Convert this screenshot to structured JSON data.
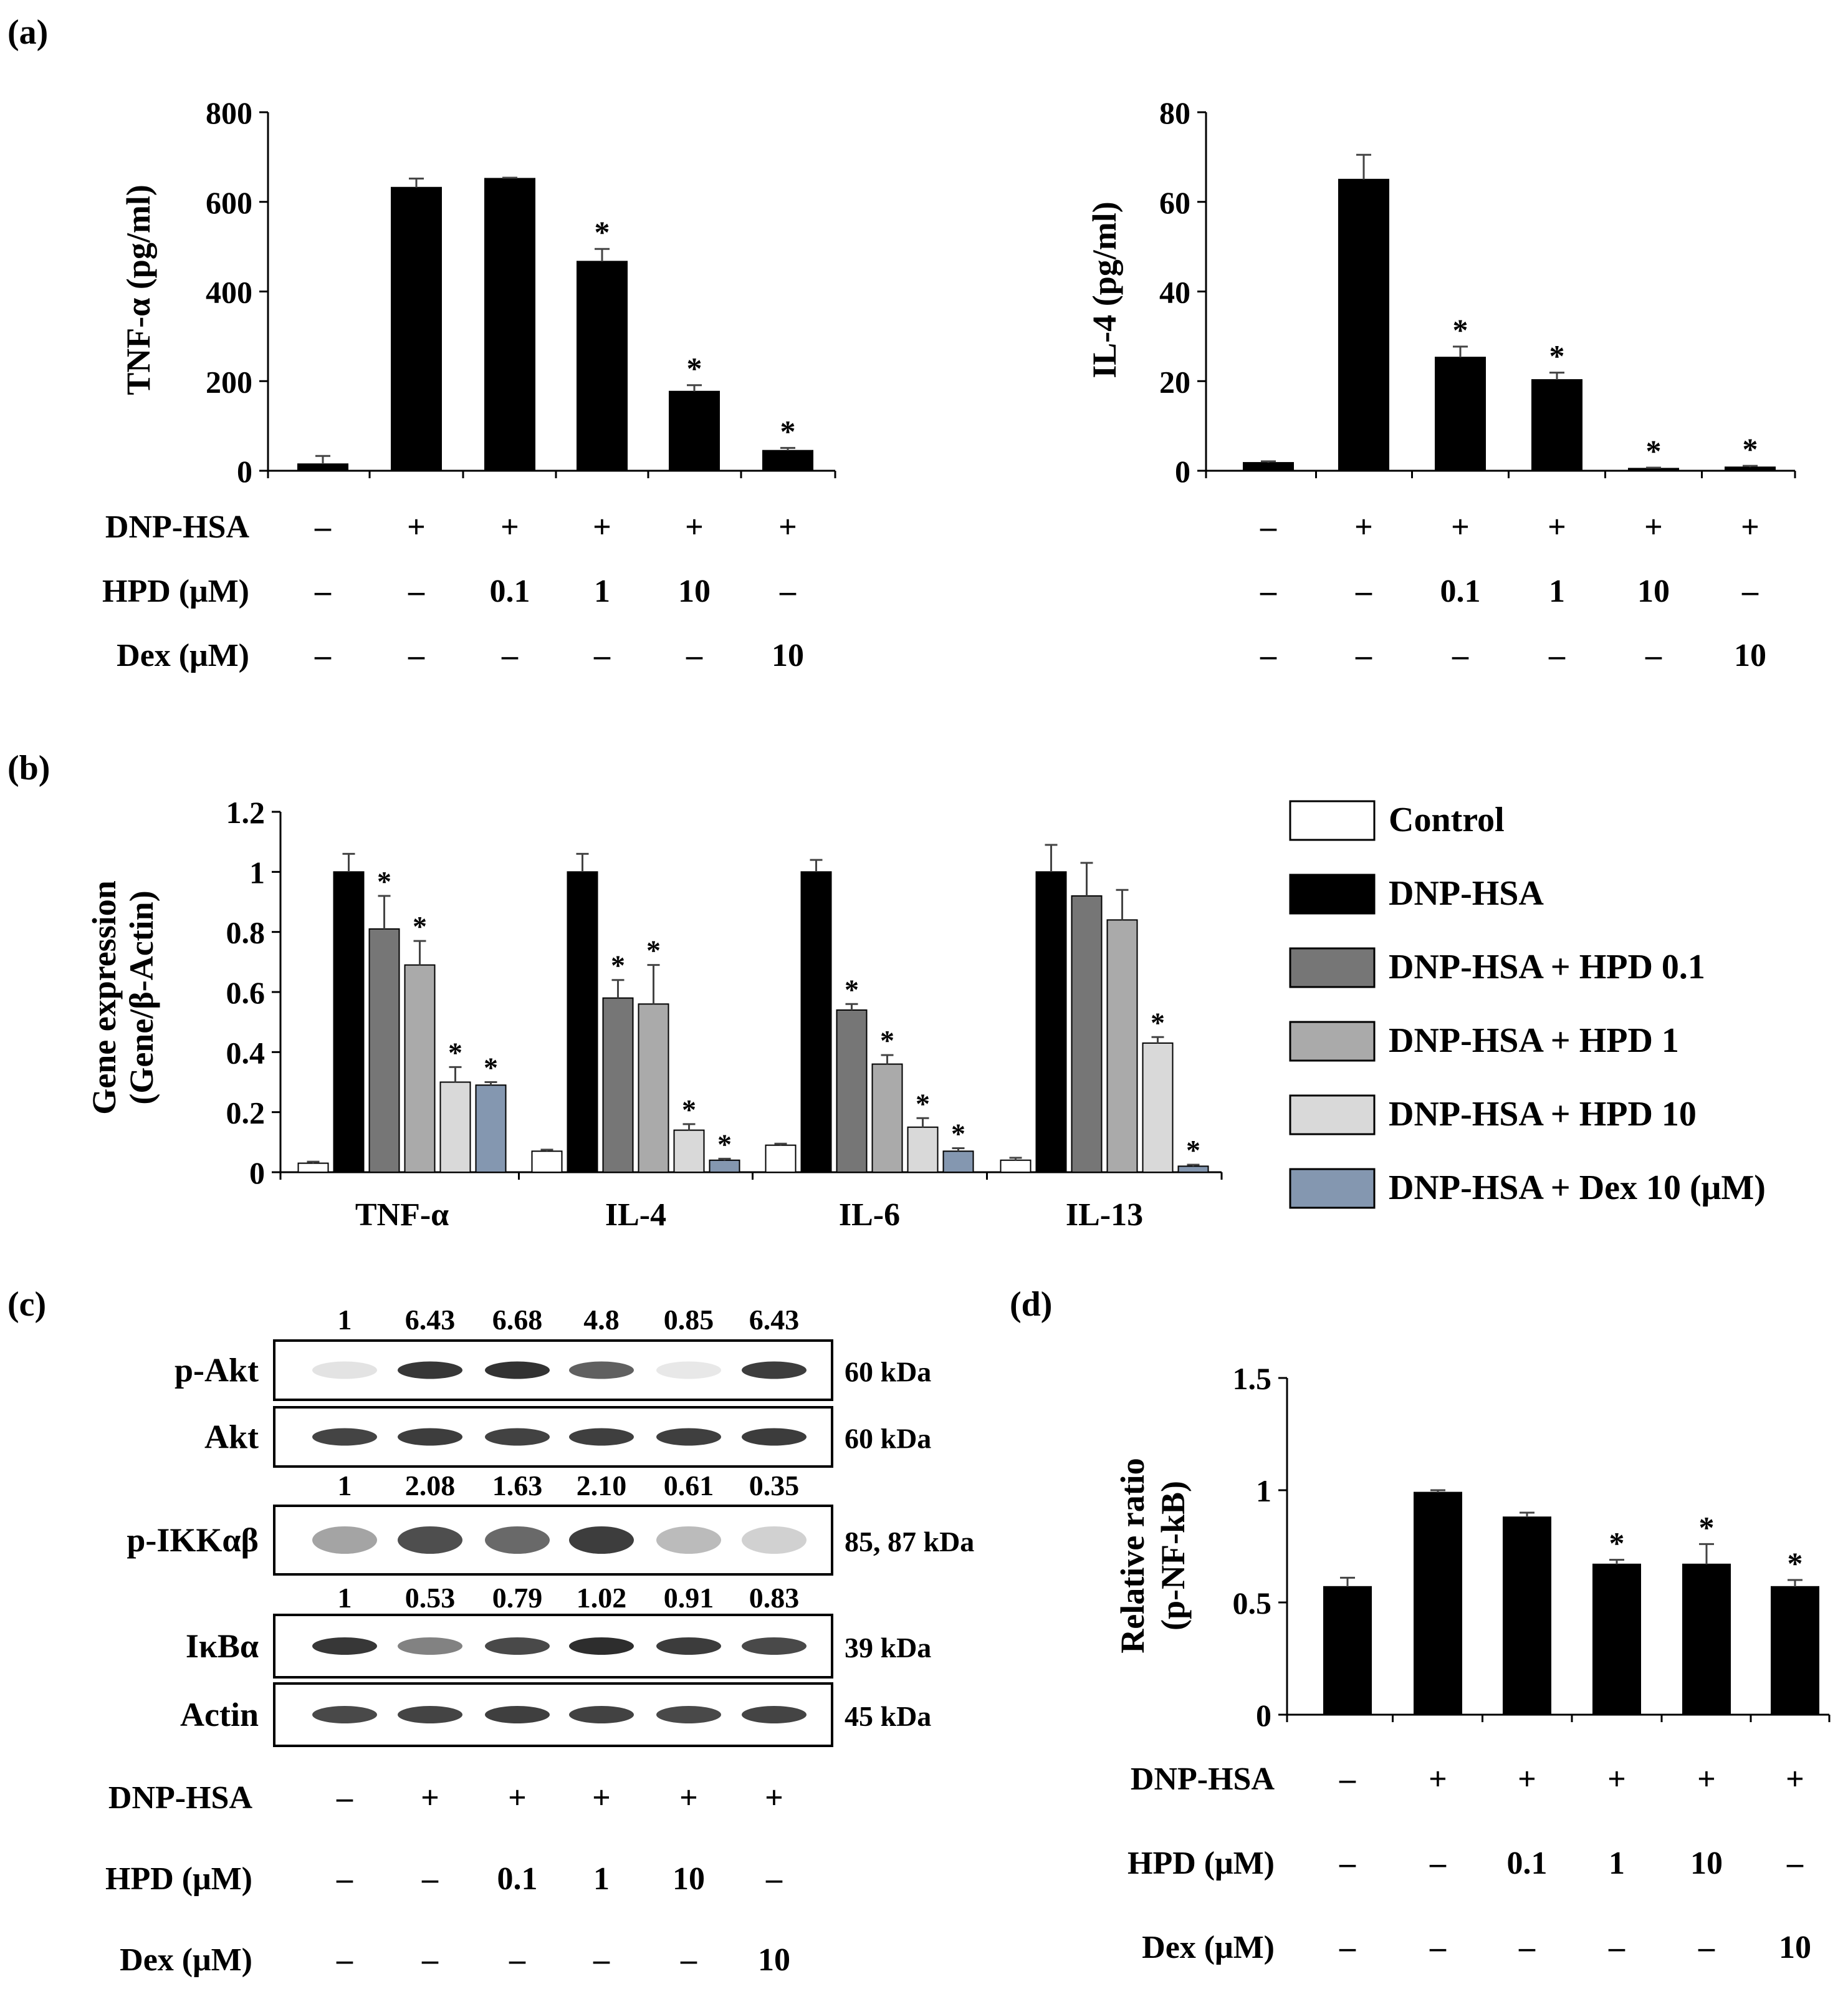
{
  "panel_labels": {
    "a": "(a)",
    "b": "(b)",
    "c": "(c)",
    "d": "(d)"
  },
  "colors": {
    "black": "#000000",
    "control": "#ffffff",
    "hpd01": "#767676",
    "hpd1": "#aaaaaa",
    "hpd10": "#d9d9d9",
    "dex": "#8497b0"
  },
  "treatment_table": {
    "row_labels": [
      "DNP-HSA",
      "HPD (μM)",
      "Dex (μM)"
    ],
    "rows": [
      [
        "–",
        "+",
        "+",
        "+",
        "+",
        "+"
      ],
      [
        "–",
        "–",
        "0.1",
        "1",
        "10",
        "–"
      ],
      [
        "–",
        "–",
        "–",
        "–",
        "–",
        "10"
      ]
    ]
  },
  "chart_data": [
    {
      "id": "a-left",
      "type": "bar",
      "ylabel": "TNF-α (pg/ml)",
      "ylim": [
        0,
        800
      ],
      "yticks": [
        0,
        200,
        400,
        600,
        800
      ],
      "ytick_labels": [
        "0",
        "200",
        "400",
        "600",
        "800"
      ],
      "values": [
        15,
        632,
        652,
        467,
        177,
        45
      ],
      "errors": [
        18,
        20,
        2,
        28,
        14,
        6
      ],
      "significant": [
        "",
        "",
        "",
        "*",
        "*",
        "*"
      ]
    },
    {
      "id": "a-right",
      "type": "bar",
      "ylabel": "IL-4 (pg/ml)",
      "ylim": [
        0,
        80
      ],
      "yticks": [
        0,
        20,
        40,
        60,
        80
      ],
      "ytick_labels": [
        "0",
        "20",
        "40",
        "60",
        "80"
      ],
      "values": [
        1.8,
        65,
        25.3,
        20.3,
        0.5,
        0.8
      ],
      "errors": [
        0.3,
        5.5,
        2.4,
        1.6,
        0.2,
        0.3
      ],
      "significant": [
        "",
        "",
        "*",
        "*",
        "*",
        "*"
      ]
    },
    {
      "id": "b",
      "type": "bar",
      "ylabel": "Gene expression",
      "ylabel2": "(Gene/β-Actin)",
      "ylim": [
        0,
        1.2
      ],
      "yticks": [
        0,
        0.2,
        0.4,
        0.6,
        0.8,
        1,
        1.2
      ],
      "ytick_labels": [
        "0",
        "0.2",
        "0.4",
        "0.6",
        "0.8",
        "1",
        "1.2"
      ],
      "categories": [
        "TNF-α",
        "IL-4",
        "IL-6",
        "IL-13"
      ],
      "series": [
        {
          "name": "Control",
          "color_key": "control",
          "values": [
            0.03,
            0.07,
            0.09,
            0.04
          ],
          "errors": [
            0.005,
            0.005,
            0.005,
            0.008
          ],
          "significant": [
            "",
            "",
            "",
            ""
          ]
        },
        {
          "name": "DNP-HSA",
          "color_key": "black",
          "values": [
            1.0,
            1.0,
            1.0,
            1.0
          ],
          "errors": [
            0.06,
            0.06,
            0.04,
            0.09
          ],
          "significant": [
            "",
            "",
            "",
            ""
          ]
        },
        {
          "name": "DNP-HSA + HPD 0.1",
          "color_key": "hpd01",
          "values": [
            0.81,
            0.58,
            0.54,
            0.92
          ],
          "errors": [
            0.11,
            0.06,
            0.02,
            0.11
          ],
          "significant": [
            "*",
            "*",
            "*",
            ""
          ]
        },
        {
          "name": "DNP-HSA + HPD 1",
          "color_key": "hpd1",
          "values": [
            0.69,
            0.56,
            0.36,
            0.84
          ],
          "errors": [
            0.08,
            0.13,
            0.03,
            0.1
          ],
          "significant": [
            "*",
            "*",
            "*",
            ""
          ]
        },
        {
          "name": "DNP-HSA + HPD 10",
          "color_key": "hpd10",
          "values": [
            0.3,
            0.14,
            0.15,
            0.43
          ],
          "errors": [
            0.05,
            0.02,
            0.03,
            0.02
          ],
          "significant": [
            "*",
            "*",
            "*",
            "*"
          ]
        },
        {
          "name": "DNP-HSA + Dex 10 (μM)",
          "color_key": "dex",
          "values": [
            0.29,
            0.04,
            0.07,
            0.02
          ],
          "errors": [
            0.01,
            0.005,
            0.01,
            0.005
          ],
          "significant": [
            "*",
            "*",
            "*",
            "*"
          ]
        }
      ]
    },
    {
      "id": "d",
      "type": "bar",
      "ylabel": "Relative ratio",
      "ylabel2": "(p-NF-kB)",
      "ylim": [
        0,
        1.5
      ],
      "yticks": [
        0,
        0.5,
        1,
        1.5
      ],
      "ytick_labels": [
        "0",
        "0.5",
        "1",
        "1.5"
      ],
      "values": [
        0.57,
        0.99,
        0.88,
        0.67,
        0.67,
        0.57
      ],
      "errors": [
        0.04,
        0.01,
        0.02,
        0.02,
        0.09,
        0.03
      ],
      "significant": [
        "",
        "",
        "",
        "*",
        "*",
        "*"
      ]
    }
  ],
  "western_blot": {
    "blots": [
      {
        "label": "p-Akt",
        "kda": "60 kDa",
        "quant": [
          "1",
          "6.43",
          "6.68",
          "4.8",
          "0.85",
          "6.43"
        ],
        "intensity": [
          0.12,
          0.88,
          0.9,
          0.7,
          0.1,
          0.85
        ]
      },
      {
        "label": "Akt",
        "kda": "60 kDa",
        "quant": [],
        "intensity": [
          0.82,
          0.85,
          0.83,
          0.84,
          0.84,
          0.86
        ]
      },
      {
        "label": "p-IKKαβ",
        "kda": "85, 87 kDa",
        "quant": [
          "1",
          "2.08",
          "1.63",
          "2.10",
          "0.61",
          "0.35"
        ],
        "intensity": [
          0.4,
          0.78,
          0.66,
          0.85,
          0.3,
          0.2
        ]
      },
      {
        "label": "IκBα",
        "kda": "39 kDa",
        "quant": [
          "1",
          "0.53",
          "0.79",
          "1.02",
          "0.91",
          "0.83"
        ],
        "intensity": [
          0.88,
          0.55,
          0.8,
          0.92,
          0.86,
          0.8
        ]
      },
      {
        "label": "Actin",
        "kda": "45 kDa",
        "quant": [],
        "intensity": [
          0.8,
          0.82,
          0.84,
          0.83,
          0.8,
          0.82
        ]
      }
    ]
  }
}
